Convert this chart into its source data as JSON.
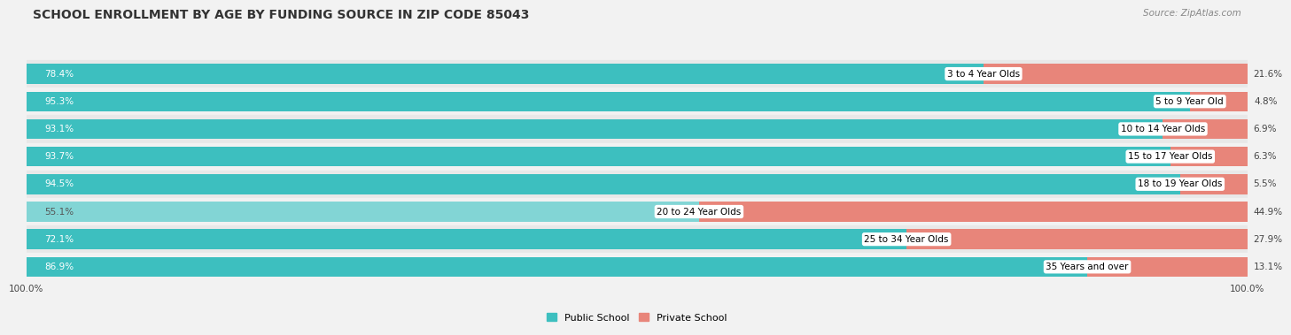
{
  "title": "SCHOOL ENROLLMENT BY AGE BY FUNDING SOURCE IN ZIP CODE 85043",
  "source": "Source: ZipAtlas.com",
  "categories": [
    "3 to 4 Year Olds",
    "5 to 9 Year Old",
    "10 to 14 Year Olds",
    "15 to 17 Year Olds",
    "18 to 19 Year Olds",
    "20 to 24 Year Olds",
    "25 to 34 Year Olds",
    "35 Years and over"
  ],
  "public_values": [
    78.4,
    95.3,
    93.1,
    93.7,
    94.5,
    55.1,
    72.1,
    86.9
  ],
  "private_values": [
    21.6,
    4.8,
    6.9,
    6.3,
    5.5,
    44.9,
    27.9,
    13.1
  ],
  "public_color": "#3DBFBF",
  "public_color_light": "#82D5D5",
  "private_color": "#E8857A",
  "bg_color": "#F2F2F2",
  "row_color_dark": "#E8E8E8",
  "row_color_light": "#F2F2F2",
  "title_fontsize": 10,
  "label_fontsize": 7.5,
  "tick_fontsize": 7.5,
  "source_fontsize": 7.5,
  "legend_fontsize": 8
}
